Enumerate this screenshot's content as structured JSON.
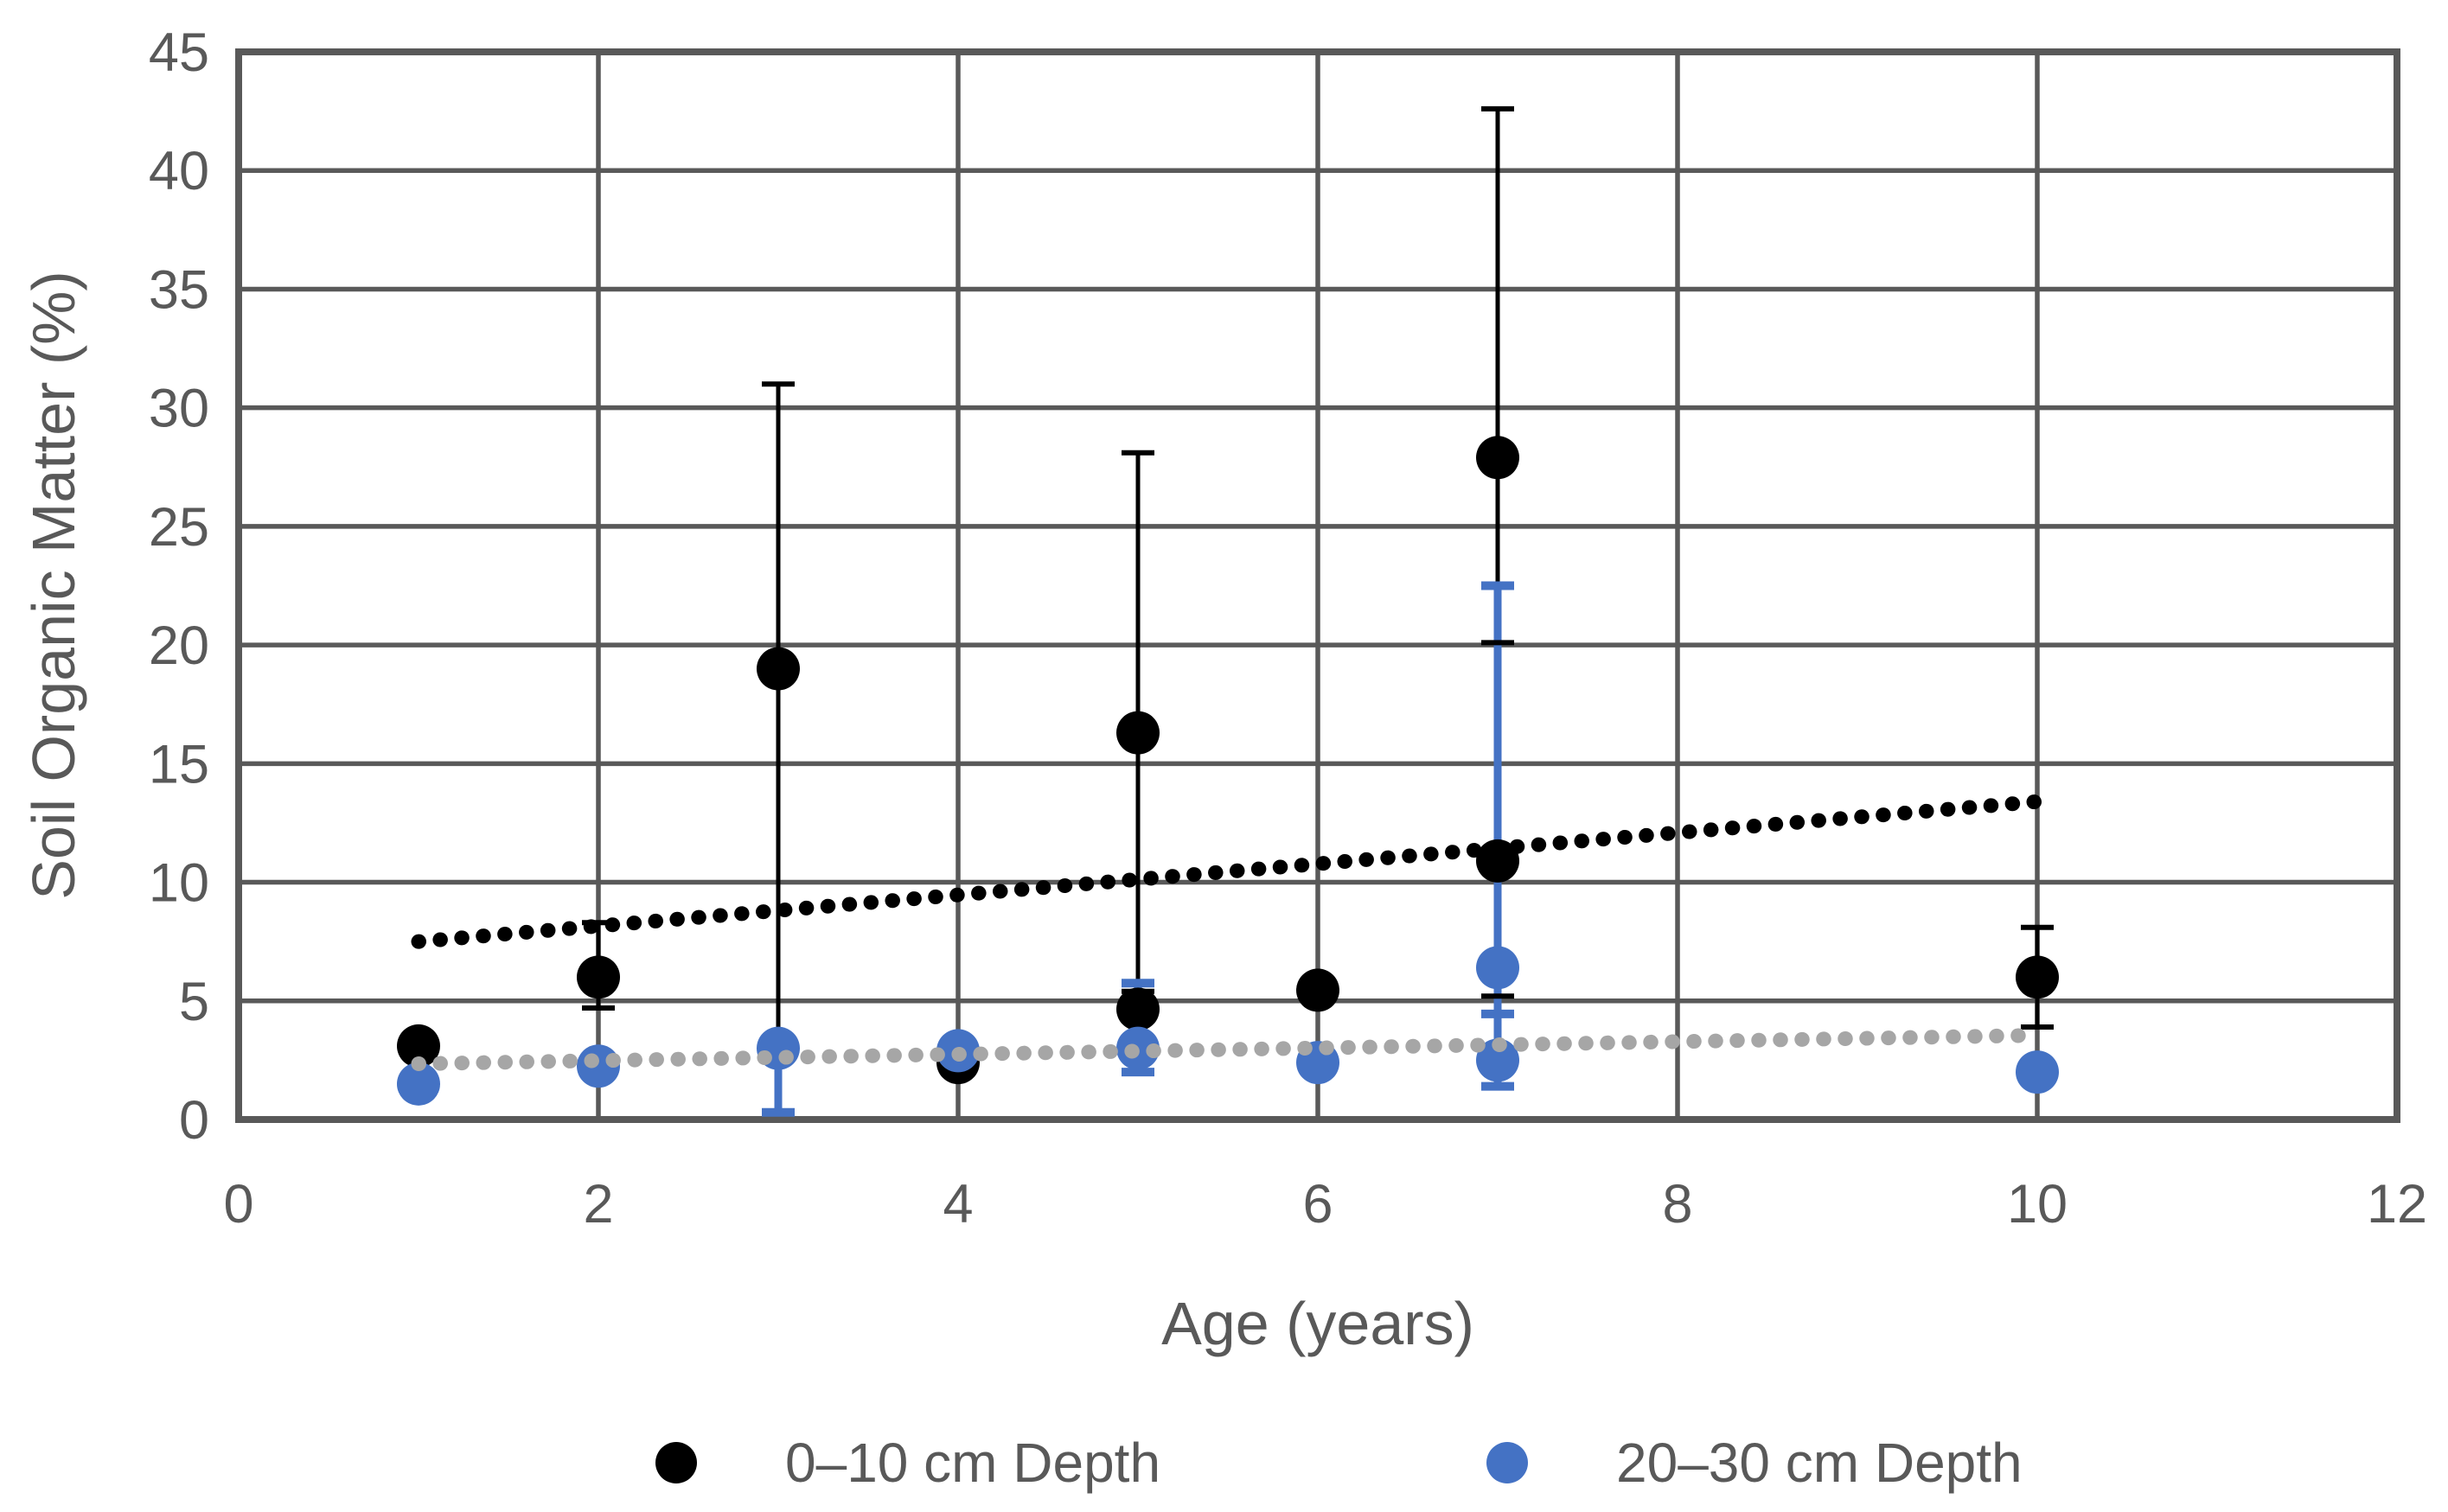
{
  "axes": {
    "x_title": "Age (years)",
    "y_title": "Soil Organic Matter (%)"
  },
  "legend": {
    "items": [
      {
        "label": "0–10 cm Depth",
        "color": "#000000"
      },
      {
        "label": "20–30 cm Depth",
        "color": "#4472C4"
      }
    ]
  },
  "colors": {
    "grid": "#595959",
    "text": "#595959",
    "background": "#FFFFFF",
    "series_black": "#000000",
    "series_blue": "#4472C4",
    "trend_gray": "#A6A6A6"
  },
  "chart_data": {
    "type": "scatter",
    "title": "",
    "xlabel": "Age (years)",
    "ylabel": "Soil Organic Matter (%)",
    "x_axis": {
      "min": 0,
      "max": 12,
      "ticks": [
        0,
        2,
        4,
        6,
        8,
        10,
        12
      ]
    },
    "y_axis": {
      "min": 0,
      "max": 45,
      "ticks": [
        0,
        5,
        10,
        15,
        20,
        25,
        30,
        35,
        40,
        45
      ]
    },
    "grid": true,
    "legend_position": "bottom",
    "series": [
      {
        "name": "0–10 cm Depth",
        "slug": "0-10cm",
        "color": "#000000",
        "marker_radius": 25,
        "points": [
          {
            "x": 1,
            "y": 3.1
          },
          {
            "x": 2,
            "y": 6.0
          },
          {
            "x": 3,
            "y": 19.0
          },
          {
            "x": 4,
            "y": 2.4
          },
          {
            "x": 5,
            "y": 16.3
          },
          {
            "x": 5,
            "y": 4.65
          },
          {
            "x": 6,
            "y": 5.45
          },
          {
            "x": 7,
            "y": 27.9
          },
          {
            "x": 7,
            "y": 10.9
          },
          {
            "x": 10,
            "y": 6.0
          }
        ],
        "error_bars": [
          {
            "x": 2,
            "from": 4.7,
            "to": 8.3,
            "caps": [
              4.7,
              8.3
            ]
          },
          {
            "x": 3,
            "from": 3.9,
            "to": 31.0,
            "caps": [
              31.0
            ]
          },
          {
            "x": 5,
            "from": 4.6,
            "to": 28.1,
            "caps": [
              28.1
            ]
          },
          {
            "x": 5,
            "from": 5.4,
            "to": 5.4,
            "caps": [
              5.4
            ]
          },
          {
            "x": 7,
            "from": 20.1,
            "to": 42.6,
            "caps": [
              20.1,
              42.6
            ]
          },
          {
            "x": 7,
            "from": 5.2,
            "to": 5.2,
            "caps": [
              5.2
            ]
          },
          {
            "x": 10,
            "from": 3.9,
            "to": 8.1,
            "caps": [
              3.9,
              8.1
            ]
          }
        ],
        "line_width": 5,
        "cap_width": 6,
        "trendline": {
          "style": "dotted",
          "color": "#000000",
          "x1": 1,
          "y1": 7.5,
          "x2": 10,
          "y2": 13.4
        }
      },
      {
        "name": "20–30 cm Depth",
        "slug": "20-30cm",
        "color": "#4472C4",
        "marker_radius": 25,
        "points": [
          {
            "x": 1,
            "y": 1.5
          },
          {
            "x": 2,
            "y": 2.25
          },
          {
            "x": 3,
            "y": 3.0
          },
          {
            "x": 4,
            "y": 2.9
          },
          {
            "x": 5,
            "y": 3.0
          },
          {
            "x": 6,
            "y": 2.4
          },
          {
            "x": 7,
            "y": 6.4
          },
          {
            "x": 7,
            "y": 2.5
          },
          {
            "x": 10,
            "y": 2.0
          }
        ],
        "error_bars": [
          {
            "x": 3,
            "from": 0.3,
            "to": 3.0,
            "caps": [
              0.3
            ]
          },
          {
            "x": 5,
            "from": 2.0,
            "to": 5.75,
            "caps": [
              2.0,
              5.75
            ]
          },
          {
            "x": 7,
            "from": 1.4,
            "to": 22.5,
            "caps": [
              1.4,
              4.45,
              22.5
            ]
          }
        ],
        "line_width": 9,
        "cap_width": 10,
        "trendline": {
          "style": "dotted",
          "color": "#A6A6A6",
          "x1": 1,
          "y1": 2.35,
          "x2": 10,
          "y2": 3.55
        }
      }
    ]
  }
}
